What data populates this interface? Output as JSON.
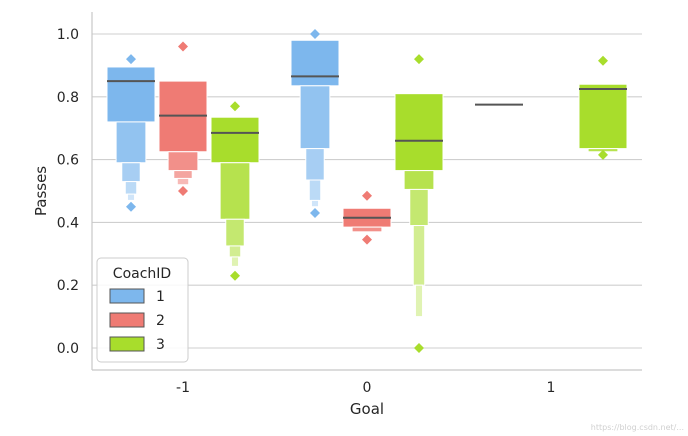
{
  "chart_data": {
    "type": "boxen",
    "xlabel": "Goal",
    "ylabel": "Passes",
    "categories": [
      "-1",
      "0",
      "1"
    ],
    "ylim": [
      -0.07,
      1.07
    ],
    "yticks": [
      "0.0",
      "0.2",
      "0.4",
      "0.6",
      "0.8",
      "1.0"
    ],
    "grid": "horizontal",
    "legend": {
      "title": "CoachID",
      "placement": "lower-left",
      "entries": [
        "1",
        "2",
        "3"
      ]
    },
    "series": [
      {
        "name": "1",
        "color": "#7db7ed",
        "groups": [
          {
            "category": "-1",
            "median": 0.85,
            "boxes": [
              [
                0.72,
                0.895
              ],
              [
                0.59,
                0.72
              ],
              [
                0.53,
                0.59
              ],
              [
                0.49,
                0.53
              ],
              [
                0.47,
                0.49
              ]
            ],
            "outliers_low": [
              0.45
            ],
            "outliers_high": [
              0.92
            ]
          },
          {
            "category": "0",
            "median": 0.865,
            "boxes": [
              [
                0.835,
                0.98
              ],
              [
                0.635,
                0.835
              ],
              [
                0.535,
                0.635
              ],
              [
                0.47,
                0.535
              ],
              [
                0.45,
                0.47
              ]
            ],
            "outliers_low": [
              0.43
            ],
            "outliers_high": [
              1.0
            ]
          }
        ]
      },
      {
        "name": "2",
        "color": "#ef7b74",
        "groups": [
          {
            "category": "-1",
            "median": 0.74,
            "boxes": [
              [
                0.625,
                0.85
              ],
              [
                0.565,
                0.625
              ],
              [
                0.54,
                0.565
              ],
              [
                0.52,
                0.54
              ]
            ],
            "outliers_low": [
              0.5
            ],
            "outliers_high": [
              0.96
            ]
          },
          {
            "category": "0",
            "median": 0.415,
            "boxes": [
              [
                0.385,
                0.445
              ],
              [
                0.37,
                0.385
              ]
            ],
            "outliers_low": [
              0.345
            ],
            "outliers_high": [
              0.485
            ]
          }
        ]
      },
      {
        "name": "3",
        "color": "#a8dd2c",
        "groups": [
          {
            "category": "-1",
            "median": 0.685,
            "boxes": [
              [
                0.59,
                0.735
              ],
              [
                0.41,
                0.59
              ],
              [
                0.325,
                0.41
              ],
              [
                0.29,
                0.325
              ],
              [
                0.26,
                0.29
              ]
            ],
            "outliers_low": [
              0.23
            ],
            "outliers_high": [
              0.77
            ]
          },
          {
            "category": "0",
            "median": 0.66,
            "boxes": [
              [
                0.565,
                0.81
              ],
              [
                0.505,
                0.565
              ],
              [
                0.39,
                0.505
              ],
              [
                0.2,
                0.39
              ],
              [
                0.1,
                0.2
              ]
            ],
            "outliers_low": [
              0.0
            ],
            "outliers_high": [
              0.92
            ]
          },
          {
            "category": "1",
            "median": 0.825,
            "boxes": [
              [
                0.635,
                0.84
              ],
              [
                0.625,
                0.635
              ]
            ],
            "outliers_low": [
              0.615
            ],
            "outliers_high": [
              0.915
            ]
          }
        ]
      }
    ],
    "median_lines": [
      {
        "category": "1",
        "series": "1",
        "value": 0.775
      }
    ]
  },
  "watermark": "https://blog.csdn.net/..."
}
